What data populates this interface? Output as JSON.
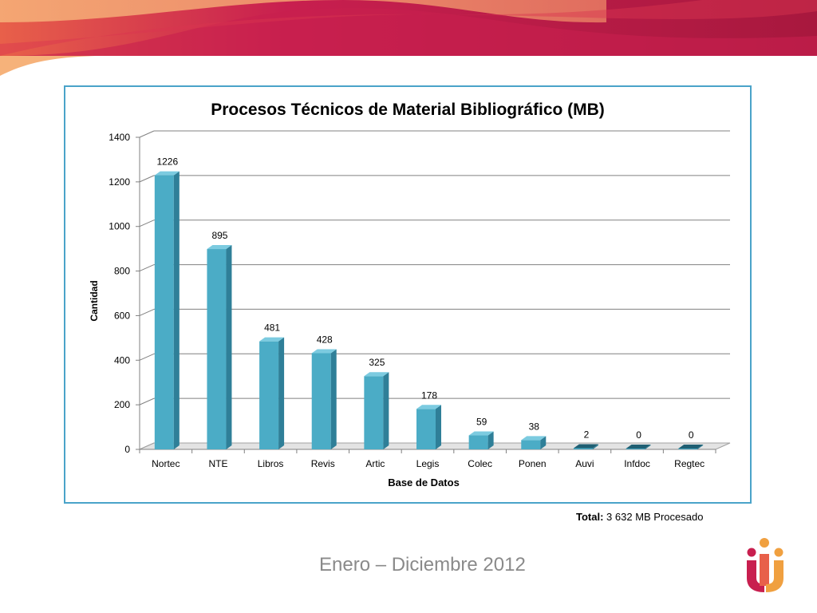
{
  "chart_data": {
    "type": "bar",
    "title": "Procesos Técnicos de Material Bibliográfico (MB)",
    "xlabel": "Base de Datos",
    "ylabel": "Cantidad",
    "categories": [
      "Nortec",
      "NTE",
      "Libros",
      "Revis",
      "Artic",
      "Legis",
      "Colec",
      "Ponen",
      "Auvi",
      "Infdoc",
      "Regtec"
    ],
    "values": [
      1226,
      895,
      481,
      428,
      325,
      178,
      59,
      38,
      2,
      0,
      0
    ],
    "ylim": [
      0,
      1400
    ],
    "yticks": [
      0,
      200,
      400,
      600,
      800,
      1000,
      1200,
      1400
    ],
    "grid": true,
    "bar_color": "#4bacc6",
    "three_d": true
  },
  "footer": {
    "total_label": "Total:",
    "total_value": "3 632 MB Procesado",
    "period": "Enero – Diciembre 2012"
  },
  "colors": {
    "banner_primary": "#b5174a",
    "banner_accent": "#f0a060",
    "frame_border": "#4aa3c9"
  }
}
